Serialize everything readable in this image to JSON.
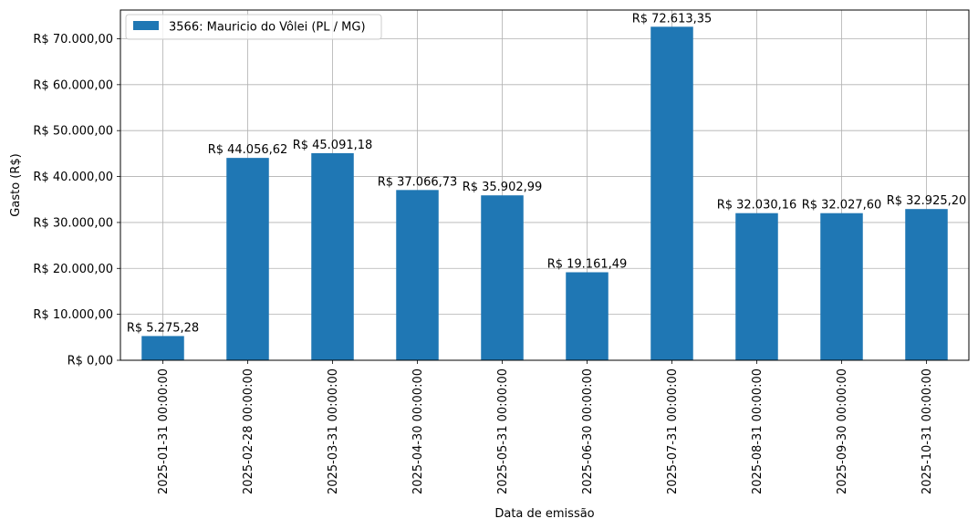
{
  "chart_data": {
    "type": "bar",
    "title": "",
    "xlabel": "Data de emissão",
    "ylabel": "Gasto (R$)",
    "categories": [
      "2025-01-31 00:00:00",
      "2025-02-28 00:00:00",
      "2025-03-31 00:00:00",
      "2025-04-30 00:00:00",
      "2025-05-31 00:00:00",
      "2025-06-30 00:00:00",
      "2025-07-31 00:00:00",
      "2025-08-31 00:00:00",
      "2025-09-30 00:00:00",
      "2025-10-31 00:00:00"
    ],
    "series": [
      {
        "name": "3566: Mauricio do Vôlei (PL / MG)",
        "color": "#1f77b4",
        "values": [
          5275.28,
          44056.62,
          45091.18,
          37066.73,
          35902.99,
          19161.49,
          72613.35,
          32030.16,
          32027.6,
          32925.2
        ],
        "data_labels": [
          "R$ 5.275,28",
          "R$ 44.056,62",
          "R$ 45.091,18",
          "R$ 37.066,73",
          "R$ 35.902,99",
          "R$ 19.161,49",
          "R$ 72.613,35",
          "R$ 32.030,16",
          "R$ 32.027,60",
          "R$ 32.925,20"
        ]
      }
    ],
    "ylim": [
      0,
      76250
    ],
    "yticks": [
      0,
      10000,
      20000,
      30000,
      40000,
      50000,
      60000,
      70000
    ],
    "ytick_labels": [
      "R$ 0,00",
      "R$ 10.000,00",
      "R$ 20.000,00",
      "R$ 30.000,00",
      "R$ 40.000,00",
      "R$ 50.000,00",
      "R$ 60.000,00",
      "R$ 70.000,00"
    ],
    "grid": true,
    "legend_position": "top-left"
  }
}
